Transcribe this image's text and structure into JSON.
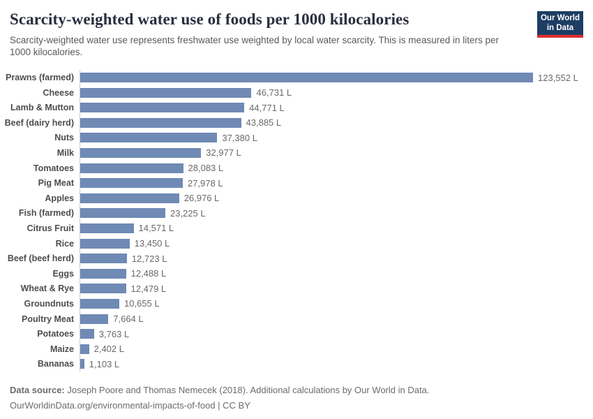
{
  "header": {
    "title": "Scarcity-weighted water use of foods per 1000 kilocalories",
    "subtitle": "Scarcity-weighted water use represents freshwater use weighted by local water scarcity. This is measured in liters per 1000 kilocalories.",
    "logo": {
      "line1": "Our World",
      "line2": "in Data"
    }
  },
  "chart_data": {
    "type": "bar",
    "orientation": "horizontal",
    "title": "Scarcity-weighted water use of foods per 1000 kilocalories",
    "unit": "liters per 1000 kilocalories",
    "xlim": [
      0,
      123552
    ],
    "grid": false,
    "value_label_position": "bar-end",
    "bar_color": "#6f8ab4",
    "categories": [
      "Prawns (farmed)",
      "Cheese",
      "Lamb & Mutton",
      "Beef (dairy herd)",
      "Nuts",
      "Milk",
      "Tomatoes",
      "Pig Meat",
      "Apples",
      "Fish (farmed)",
      "Citrus Fruit",
      "Rice",
      "Beef (beef herd)",
      "Eggs",
      "Wheat & Rye",
      "Groundnuts",
      "Poultry Meat",
      "Potatoes",
      "Maize",
      "Bananas"
    ],
    "values": [
      123552,
      46731,
      44771,
      43885,
      37380,
      32977,
      28083,
      27978,
      26976,
      23225,
      14571,
      13450,
      12723,
      12488,
      12479,
      10655,
      7664,
      3763,
      2402,
      1103
    ],
    "value_labels": [
      "123,552 L",
      "46,731 L",
      "44,771 L",
      "43,885 L",
      "37,380 L",
      "32,977 L",
      "28,083 L",
      "27,978 L",
      "26,976 L",
      "23,225 L",
      "14,571 L",
      "13,450 L",
      "12,723 L",
      "12,488 L",
      "12,479 L",
      "10,655 L",
      "7,664 L",
      "3,763 L",
      "2,402 L",
      "1,103 L"
    ]
  },
  "footer": {
    "source_label": "Data source:",
    "source_text": "Joseph Poore and Thomas Nemecek (2018). Additional calculations by Our World in Data.",
    "url": "OurWorldinData.org/environmental-impacts-of-food",
    "license_sep": " | ",
    "license": "CC BY"
  },
  "colors": {
    "bar": "#6f8ab4",
    "logo_bg": "#1d3d63",
    "logo_stripe": "#dc2e2e",
    "title_text": "#2a2e3f",
    "axis_line": "#cccccc"
  }
}
